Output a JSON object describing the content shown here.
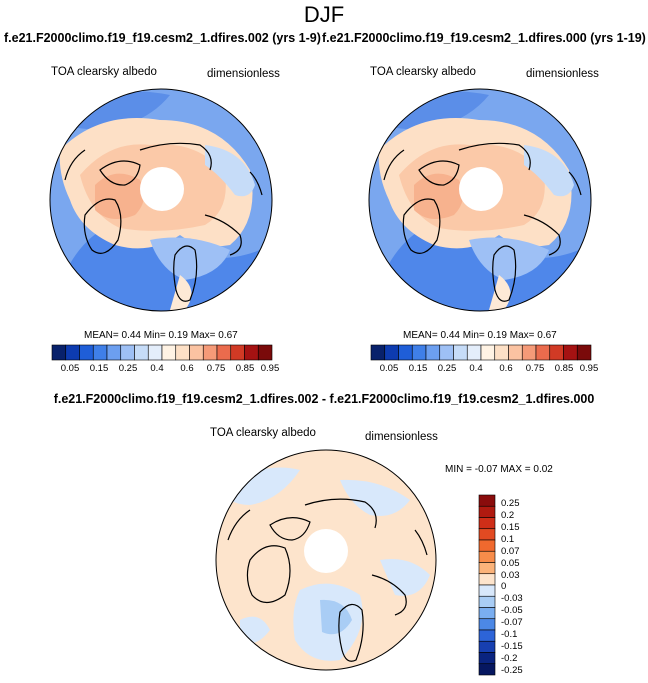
{
  "header": {
    "title": "DJF"
  },
  "case_titles": {
    "left": "f.e21.F2000climo.f19_f19.cesm2_1.dfires.002 (yrs 1-9)",
    "right": "f.e21.F2000climo.f19_f19.cesm2_1.dfires.000 (yrs 1-19)"
  },
  "panels": [
    {
      "variable": "TOA clearsky albedo",
      "units": "dimensionless",
      "mean_label": "MEAN=",
      "mean": "0.44",
      "min_label": "Min=",
      "min": "0.19",
      "max_label": "Max=",
      "max": "0.67"
    },
    {
      "variable": "TOA clearsky albedo",
      "units": "dimensionless",
      "mean_label": "MEAN=",
      "mean": "0.44",
      "min_label": "Min=",
      "min": "0.19",
      "max_label": "Max=",
      "max": "0.67"
    }
  ],
  "colorbar": {
    "ticks": [
      "0.05",
      "0.15",
      "0.25",
      "0.4",
      "0.6",
      "0.75",
      "0.85",
      "0.95"
    ],
    "colors": [
      "#08216b",
      "#0d3bb0",
      "#1f5ed8",
      "#3f7fe8",
      "#6c9ff0",
      "#9ec0f5",
      "#c6dcf8",
      "#e4eefb",
      "#fff3e4",
      "#fde0c6",
      "#fbc3a2",
      "#f59a78",
      "#ea6b4d",
      "#d13a25",
      "#a51212",
      "#7a0a0a"
    ]
  },
  "difference": {
    "title": "f.e21.F2000climo.f19_f19.cesm2_1.dfires.002 - f.e21.F2000climo.f19_f19.cesm2_1.dfires.000",
    "variable": "TOA clearsky albedo",
    "units": "dimensionless",
    "min_label": "MIN =",
    "min": "-0.07",
    "max_label": "MAX =",
    "max": "0.02",
    "colorbar_ticks": [
      "0.25",
      "0.2",
      "0.15",
      "0.1",
      "0.07",
      "0.05",
      "0.03",
      "0",
      "-0.03",
      "-0.05",
      "-0.07",
      "-0.1",
      "-0.15",
      "-0.2",
      "-0.25"
    ],
    "colorbar_colors": [
      "#8a0c0c",
      "#b01a10",
      "#cf2e18",
      "#e24a22",
      "#f0692e",
      "#f78c4a",
      "#fbb37a",
      "#fde4cc",
      "#d8e8fb",
      "#a9cdf5",
      "#7aaef0",
      "#4c88e6",
      "#2d64d8",
      "#173fb0",
      "#0a2480",
      "#061760"
    ]
  }
}
